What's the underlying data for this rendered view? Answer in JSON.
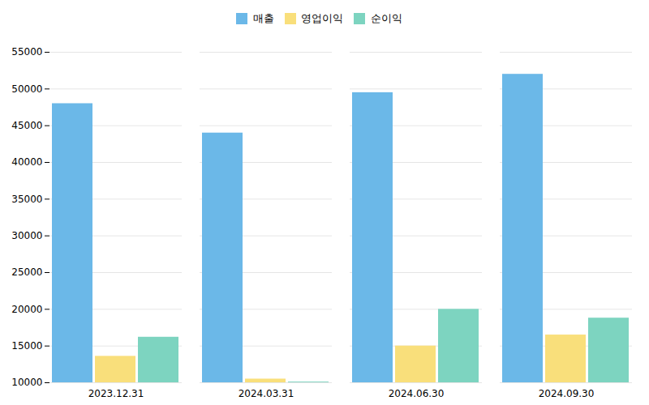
{
  "chart_data": {
    "type": "bar",
    "categories": [
      "2023.12.31",
      "2024.03.31",
      "2024.06.30",
      "2024.09.30"
    ],
    "series": [
      {
        "name": "매출",
        "color": "#6BB8E8",
        "values": [
          48000,
          44000,
          49500,
          52000
        ]
      },
      {
        "name": "영업이익",
        "color": "#F9DF7B",
        "values": [
          13600,
          10500,
          15000,
          16500
        ]
      },
      {
        "name": "순이익",
        "color": "#7DD4C0",
        "values": [
          16200,
          10100,
          20000,
          18800
        ]
      }
    ],
    "ylim": [
      10000,
      55000
    ],
    "yticks": [
      10000,
      15000,
      20000,
      25000,
      30000,
      35000,
      40000,
      45000,
      50000,
      55000
    ],
    "grid": true,
    "legend": "top"
  }
}
